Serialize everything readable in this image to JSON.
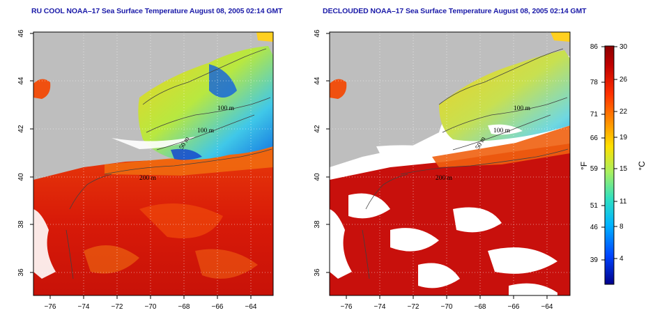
{
  "titles": {
    "left": "RU COOL NOAA–17 Sea Surface Temperature August 08, 2005 02:14 GMT",
    "right": "DECLOUDED NOAA–17 Sea Surface Temperature August 08, 2005 02:14 GMT"
  },
  "axes": {
    "lon_labels": [
      "−76",
      "−74",
      "−72",
      "−70",
      "−68",
      "−66",
      "−64"
    ],
    "lat_labels": [
      "36",
      "38",
      "40",
      "42",
      "44",
      "46"
    ],
    "lon_range": [
      -77,
      -63
    ],
    "lat_range": [
      35,
      46
    ]
  },
  "contours": {
    "labels": [
      "100 m",
      "100 m",
      "50 m",
      "200 m"
    ]
  },
  "colorbar": {
    "fahrenheit_labels": [
      "86",
      "78",
      "71",
      "66",
      "59",
      "51",
      "46",
      "39"
    ],
    "celsius_labels": [
      "30",
      "26",
      "22",
      "19",
      "15",
      "11",
      "8",
      "4"
    ],
    "fahrenheit_unit": "°F",
    "celsius_unit": "°C",
    "colors": [
      "#00008b",
      "#0044ff",
      "#00b4ff",
      "#30e0c0",
      "#a8f060",
      "#ffe000",
      "#ff9000",
      "#ff3000",
      "#c00000",
      "#8b0000"
    ]
  }
}
